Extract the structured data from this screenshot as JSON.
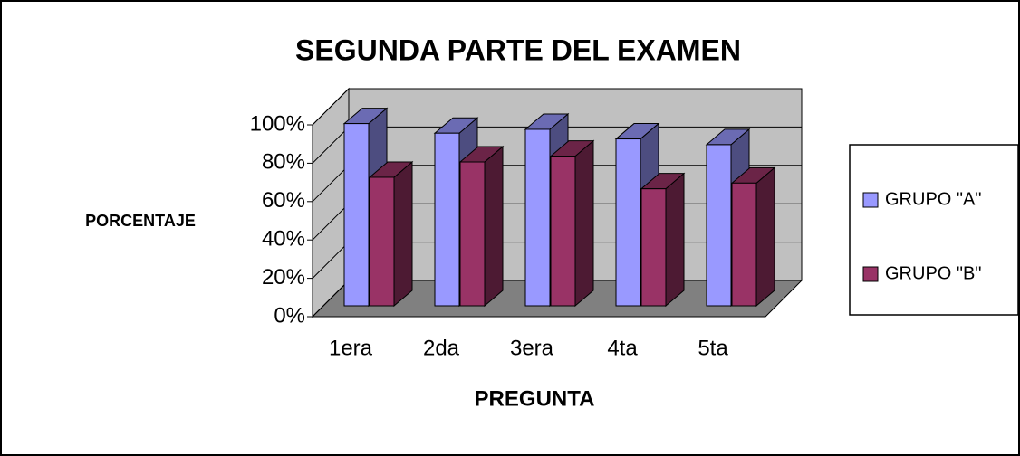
{
  "chart_data": {
    "type": "bar3d",
    "title": "SEGUNDA PARTE DEL EXAMEN",
    "y_label": "PORCENTAJE",
    "x_label": "PREGUNTA",
    "categories": [
      "1era",
      "2da",
      "3era",
      "4ta",
      "5ta"
    ],
    "series": [
      {
        "name": "GRUPO \"A\"",
        "color": "#9999ff",
        "values": [
          95,
          90,
          92,
          87,
          84
        ]
      },
      {
        "name": "GRUPO \"B\"",
        "color": "#993366",
        "values": [
          67,
          75,
          78,
          61,
          64
        ]
      }
    ],
    "ylim": [
      0,
      100
    ],
    "yticks": [
      {
        "value": 0,
        "label": "0%"
      },
      {
        "value": 20,
        "label": "20%"
      },
      {
        "value": 40,
        "label": "40%"
      },
      {
        "value": 60,
        "label": "60%"
      },
      {
        "value": 80,
        "label": "80%"
      },
      {
        "value": 100,
        "label": "100%"
      }
    ],
    "grid": true,
    "legend": "right"
  }
}
